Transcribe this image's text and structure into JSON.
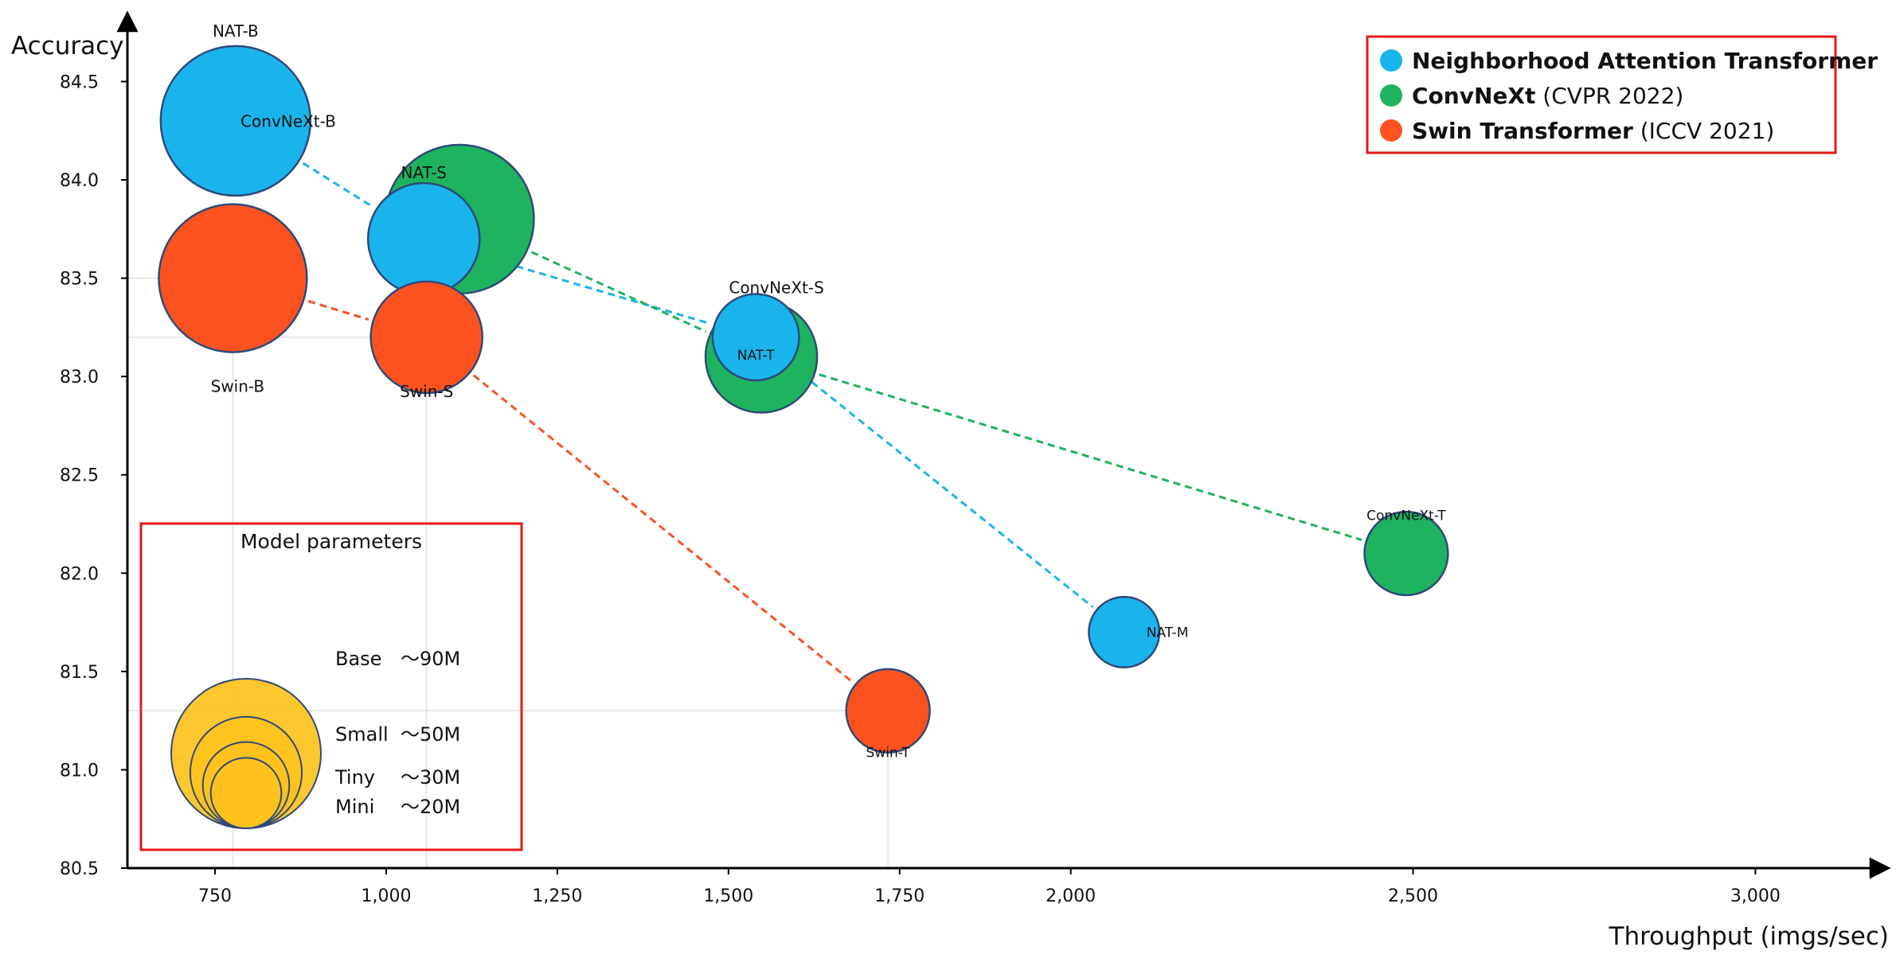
{
  "chart_data": {
    "type": "scatter",
    "xlabel": "Throughput (imgs/sec)",
    "ylabel": "Accuracy",
    "xlim": [
      622,
      3195
    ],
    "ylim": [
      80.5,
      84.85
    ],
    "xticks": [
      750,
      1000,
      1250,
      1500,
      1750,
      2000,
      2500,
      3000
    ],
    "xtick_labels": [
      "750",
      "1,000",
      "1,250",
      "1,500",
      "1,750",
      "2,000",
      "2,500",
      "3,000"
    ],
    "yticks": [
      80.5,
      81.0,
      81.5,
      82.0,
      82.5,
      83.0,
      83.5,
      84.0,
      84.5
    ],
    "ytick_labels": [
      "80.5",
      "81.0",
      "81.5",
      "82.0",
      "82.5",
      "83.0",
      "83.5",
      "84.0",
      "84.5"
    ],
    "series": [
      {
        "name": "Neighborhood Attention Transformer",
        "color": "#1ab4ec",
        "points": [
          {
            "label": "NAT-B",
            "x": 780,
            "y": 84.3,
            "params_m": 90
          },
          {
            "label": "NAT-S",
            "x": 1055,
            "y": 83.7,
            "params_m": 50
          },
          {
            "label": "NAT-T",
            "x": 1540,
            "y": 83.2,
            "params_m": 30
          },
          {
            "label": "NAT-M",
            "x": 2078,
            "y": 81.7,
            "params_m": 20
          }
        ]
      },
      {
        "name": "ConvNeXt",
        "note": "(CVPR 2022)",
        "color": "#1db35f",
        "points": [
          {
            "label": "ConvNeXt-B",
            "x": 1107,
            "y": 83.8,
            "params_m": 89
          },
          {
            "label": "ConvNeXt-S",
            "x": 1548,
            "y": 83.1,
            "params_m": 50
          },
          {
            "label": "ConvNeXt-T",
            "x": 2490,
            "y": 82.1,
            "params_m": 28
          }
        ]
      },
      {
        "name": "Swin Transformer",
        "note": "(ICCV 2021)",
        "color": "#fd5220",
        "points": [
          {
            "label": "Swin-B",
            "x": 776,
            "y": 83.5,
            "params_m": 88
          },
          {
            "label": "Swin-S",
            "x": 1059,
            "y": 83.2,
            "params_m": 50
          },
          {
            "label": "Swin-T",
            "x": 1733,
            "y": 81.3,
            "params_m": 28
          }
        ]
      }
    ],
    "size_legend": {
      "title": "Model parameters",
      "color": "#ffc21c",
      "items": [
        {
          "name": "Base",
          "value": "～90M"
        },
        {
          "name": "Small",
          "value": "～50M"
        },
        {
          "name": "Tiny",
          "value": "～30M"
        },
        {
          "name": "Mini",
          "value": "～20M"
        }
      ]
    },
    "legend_position": "top-right",
    "grid": false
  }
}
